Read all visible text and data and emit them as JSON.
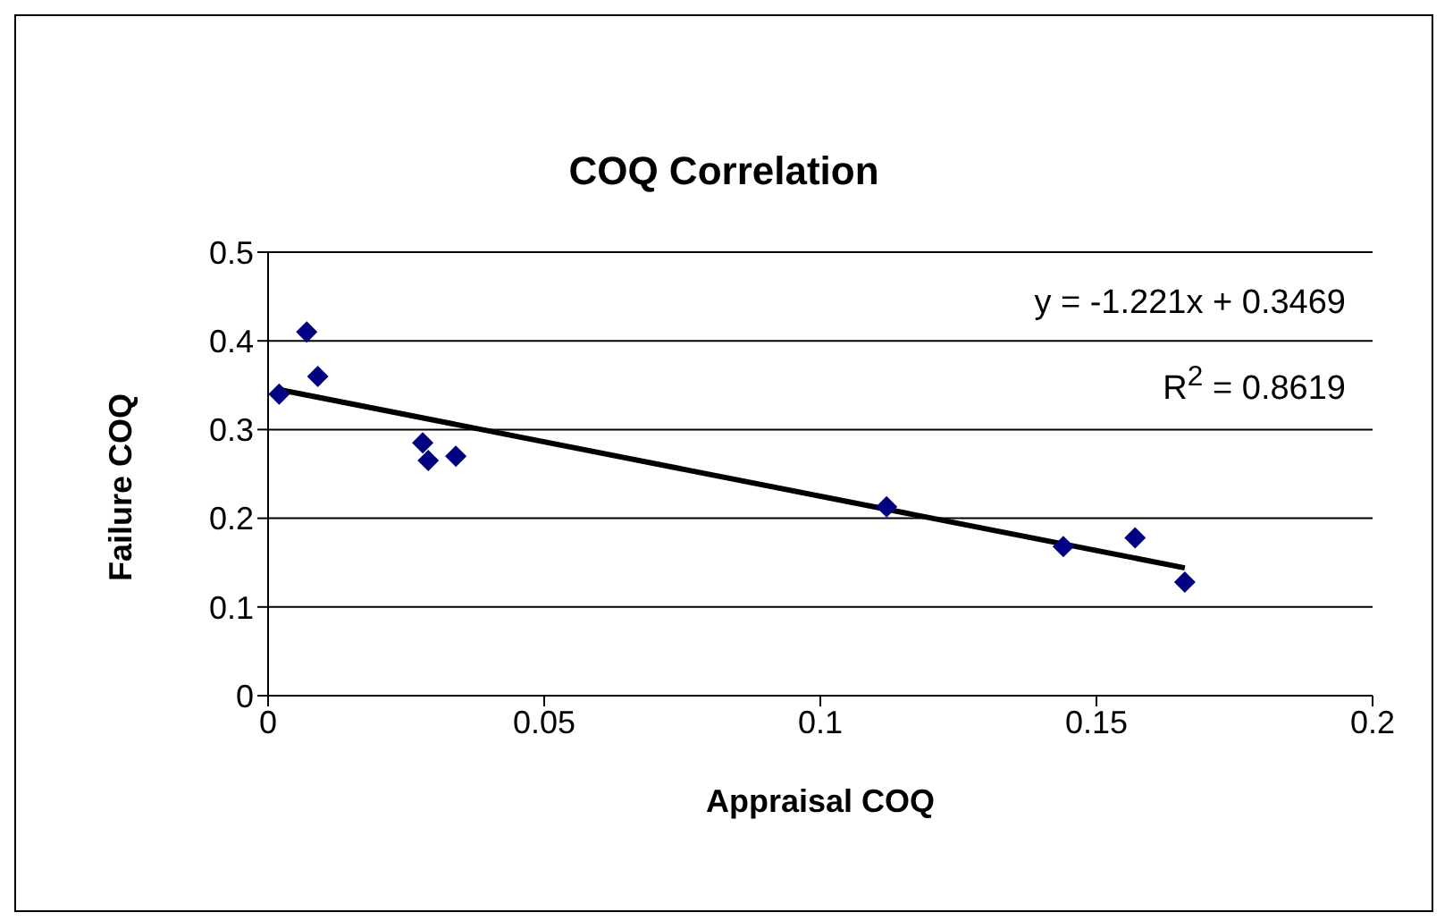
{
  "chart_data": {
    "type": "scatter",
    "title": "COQ Correlation",
    "xlabel": "Appraisal COQ",
    "ylabel": "Failure COQ",
    "annotations": [
      "y = -1.221x + 0.3469",
      "R$^{2}$ = 0.8619"
    ],
    "series": [
      {
        "color": "#000080",
        "marker": "diamond",
        "x": [
          0.002,
          0.007,
          0.009,
          0.028,
          0.029,
          0.034,
          0.112,
          0.144,
          0.157,
          0.166
        ],
        "values": [
          0.34,
          0.41,
          0.36,
          0.285,
          0.265,
          0.27,
          0.213,
          0.168,
          0.178,
          0.128
        ]
      },
      {
        "type": "line",
        "color": "#000000",
        "marker": "none",
        "x": [
          0.002,
          0.166
        ],
        "values": [
          0.345,
          0.144
        ]
      }
    ],
    "xlim": [
      0,
      0.2
    ],
    "xticks": [
      0,
      0.05,
      0.1,
      0.15,
      0.2
    ],
    "ylim": [
      0,
      0.5
    ],
    "yticks": [
      0,
      0.1,
      0.2,
      0.3,
      0.4,
      0.5
    ],
    "grid": "y",
    "legend": false
  }
}
